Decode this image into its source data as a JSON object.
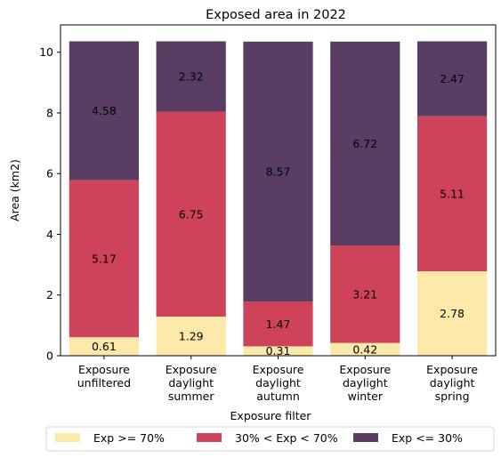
{
  "chart_data": {
    "type": "bar",
    "stacked": true,
    "title": "Exposed area in 2022",
    "xlabel": "Exposure filter",
    "ylabel": "Area (km2)",
    "categories": [
      [
        "Exposure",
        "unfiltered"
      ],
      [
        "Exposure",
        "daylight",
        "summer"
      ],
      [
        "Exposure",
        "daylight",
        "autumn"
      ],
      [
        "Exposure",
        "daylight",
        "winter"
      ],
      [
        "Exposure",
        "daylight",
        "spring"
      ]
    ],
    "series": [
      {
        "name": "Exp >= 70%",
        "color": "#fce9a9",
        "values": [
          0.61,
          1.29,
          0.31,
          0.42,
          2.78
        ]
      },
      {
        "name": "30% < Exp < 70%",
        "color": "#cf435a",
        "values": [
          5.17,
          6.75,
          1.47,
          3.21,
          5.11
        ]
      },
      {
        "name": "Exp <= 30%",
        "color": "#5a3d63",
        "values": [
          4.58,
          2.32,
          8.57,
          6.72,
          2.47
        ]
      }
    ],
    "data_labels": true,
    "ylim": [
      0,
      10.9
    ],
    "yticks": [
      0,
      2,
      4,
      6,
      8,
      10
    ],
    "grid": false,
    "legend_position": "bottom"
  }
}
